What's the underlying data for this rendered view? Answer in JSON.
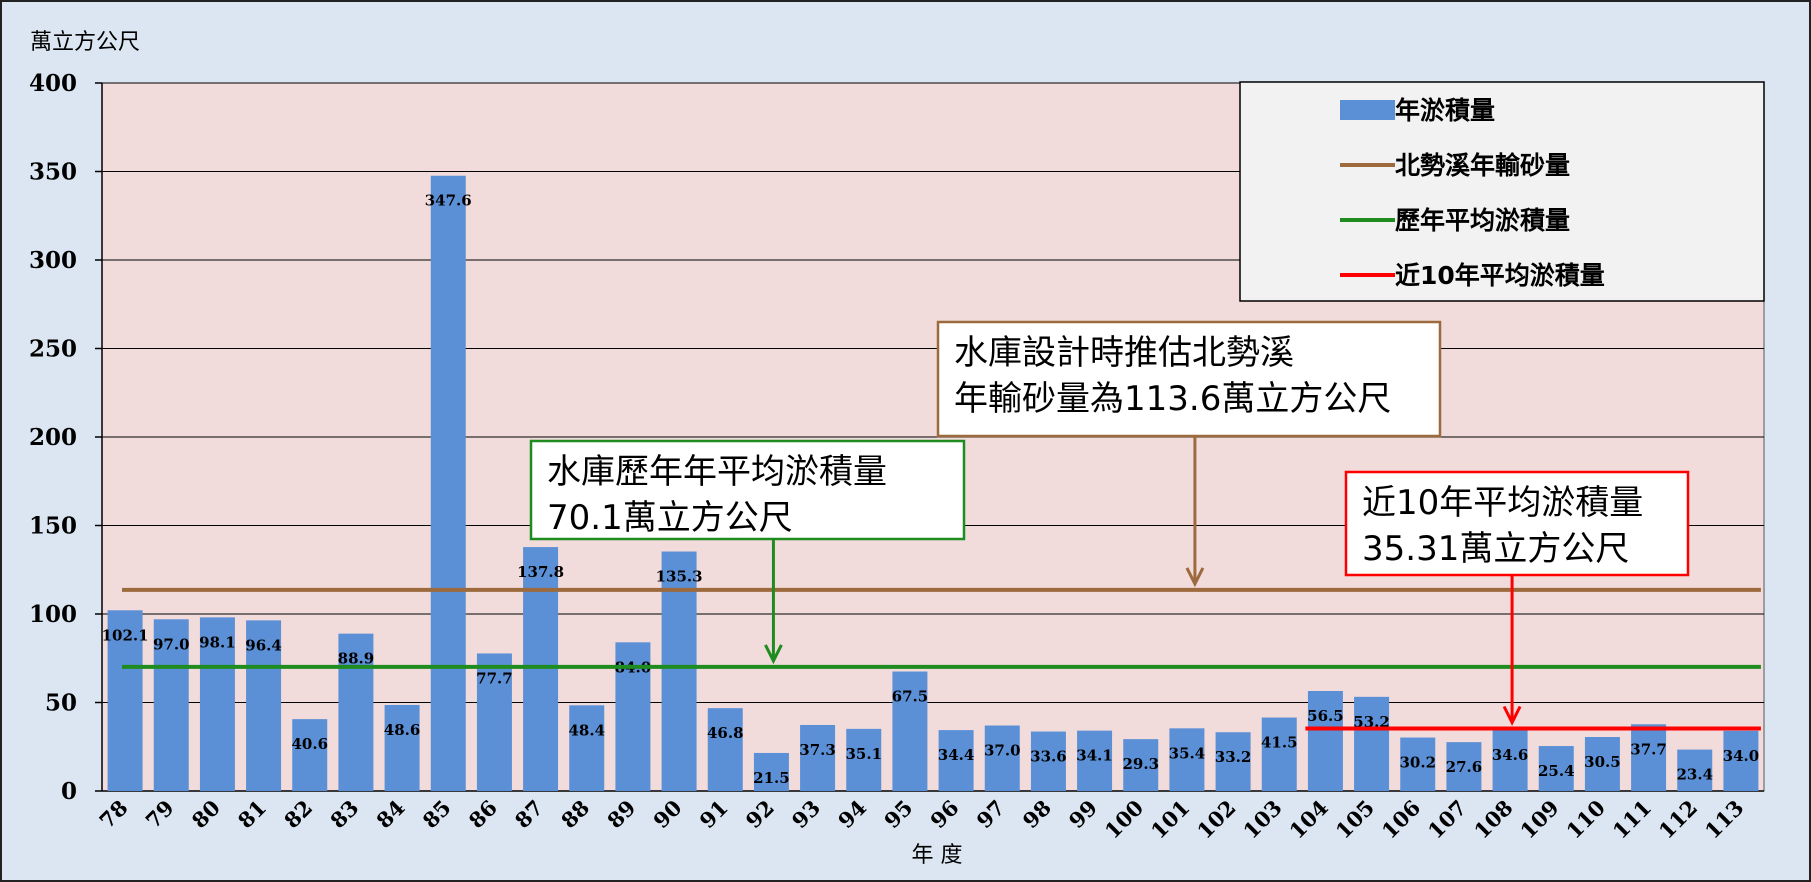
{
  "chart_data": {
    "type": "bar",
    "ylabel": "萬立方公尺",
    "xlabel": "年 度",
    "ylim": [
      0,
      400
    ],
    "yticks": [
      0,
      50,
      100,
      150,
      200,
      250,
      300,
      350,
      400
    ],
    "categories": [
      "78",
      "79",
      "80",
      "81",
      "82",
      "83",
      "84",
      "85",
      "86",
      "87",
      "88",
      "89",
      "90",
      "91",
      "92",
      "93",
      "94",
      "95",
      "96",
      "97",
      "98",
      "99",
      "100",
      "101",
      "102",
      "103",
      "104",
      "105",
      "106",
      "107",
      "108",
      "109",
      "110",
      "111",
      "112",
      "113"
    ],
    "series": [
      {
        "name": "年淤積量",
        "type": "bar",
        "color": "#5b8fd6",
        "values": [
          102.1,
          97.0,
          98.1,
          96.4,
          40.6,
          88.9,
          48.6,
          347.6,
          77.7,
          137.8,
          48.4,
          84.0,
          135.3,
          46.8,
          21.5,
          37.3,
          35.1,
          67.5,
          34.4,
          37.0,
          33.6,
          34.1,
          29.3,
          35.4,
          33.2,
          41.5,
          56.5,
          53.2,
          30.2,
          27.6,
          34.6,
          25.4,
          30.5,
          37.7,
          23.4,
          34.0
        ]
      },
      {
        "name": "北勢溪年輸砂量",
        "type": "line",
        "color": "#9c6a3c",
        "value": 113.6,
        "x_range": [
          "78",
          "113"
        ]
      },
      {
        "name": "歷年平均淤積量",
        "type": "line",
        "color": "#1e8c1e",
        "value": 70.1,
        "x_range": [
          "78",
          "113"
        ]
      },
      {
        "name": "近10年平均淤積量",
        "type": "line",
        "color": "#ff0000",
        "value": 35.31,
        "x_range": [
          "104",
          "113"
        ]
      }
    ],
    "annotations": [
      {
        "lines": [
          "水庫設計時推估北勢溪",
          "年輸砂量為113.6萬立方公尺"
        ],
        "color": "#9c6a3c",
        "arrow_to": {
          "x": "101",
          "y": 113.6
        }
      },
      {
        "lines": [
          "水庫歷年年平均淤積量",
          "70.1萬立方公尺"
        ],
        "color": "#1e8c1e",
        "arrow_to": {
          "x": "92",
          "y": 70.1
        }
      },
      {
        "lines": [
          "近10年平均淤積量",
          "35.31萬立方公尺"
        ],
        "color": "#ff0000",
        "arrow_to": {
          "x": "108",
          "y": 35.31
        }
      }
    ],
    "legend_position": "top-right",
    "grid": true
  }
}
